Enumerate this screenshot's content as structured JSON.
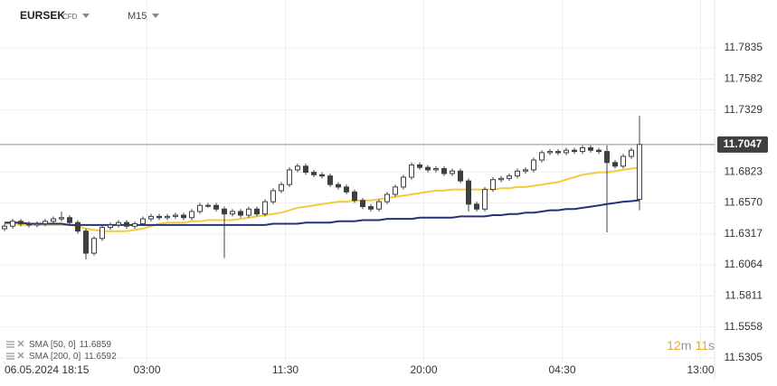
{
  "chart_data": {
    "type": "candlestick",
    "symbol": "EURSEK",
    "instrument_type": "CFD",
    "timeframe": "M15",
    "ylim": [
      11.5275,
      11.8005
    ],
    "yticks": [
      11.7835,
      11.7582,
      11.7329,
      11.6823,
      {
        "value": 11.657,
        "label": "11.6570"
      },
      11.6317,
      11.6064,
      11.5811,
      11.5558,
      11.5305
    ],
    "xlim": [
      -0.5,
      87.5
    ],
    "xticks": [
      {
        "value": 0,
        "label": "06.05.2024 18:15"
      },
      {
        "value": 17.5,
        "label": "03:00"
      },
      {
        "value": 34.5,
        "label": "11:30"
      },
      {
        "value": 51.5,
        "label": "20:00"
      },
      {
        "value": 68.5,
        "label": "04:30"
      },
      {
        "value": 85.5,
        "label": "13:00"
      }
    ],
    "grid": true,
    "up_color": "#ffffff",
    "down_color": "#3c4043",
    "wick_color": "#3c4043",
    "open": [
      11.636,
      11.638,
      11.642,
      11.64,
      11.639,
      11.64,
      11.642,
      11.644,
      11.645,
      11.641,
      11.634,
      11.616,
      11.628,
      11.637,
      11.639,
      11.641,
      11.638,
      11.64,
      11.644,
      11.646,
      11.645,
      11.646,
      11.647,
      11.645,
      11.65,
      11.655,
      11.655,
      11.652,
      11.648,
      11.65,
      11.647,
      11.652,
      11.648,
      11.658,
      11.667,
      11.672,
      11.684,
      11.687,
      11.682,
      11.68,
      11.679,
      11.672,
      11.67,
      11.666,
      11.659,
      11.654,
      11.652,
      11.658,
      11.664,
      11.67,
      11.678,
      11.688,
      11.686,
      11.684,
      11.685,
      11.681,
      11.683,
      11.675,
      11.656,
      11.652,
      11.668,
      11.676,
      11.677,
      11.679,
      11.683,
      11.684,
      11.692,
      11.698,
      11.699,
      11.698,
      11.7,
      11.699,
      11.702,
      11.7,
      11.699,
      11.69,
      11.687,
      11.695,
      11.66
    ],
    "high": [
      11.64,
      11.644,
      11.644,
      11.642,
      11.642,
      11.644,
      11.646,
      11.65,
      11.647,
      11.643,
      11.636,
      11.63,
      11.639,
      11.641,
      11.643,
      11.643,
      11.642,
      11.646,
      11.648,
      11.648,
      11.648,
      11.649,
      11.649,
      11.652,
      11.657,
      11.657,
      11.657,
      11.654,
      11.652,
      11.652,
      11.654,
      11.654,
      11.66,
      11.669,
      11.674,
      11.686,
      11.689,
      11.689,
      11.684,
      11.682,
      11.681,
      11.674,
      11.672,
      11.668,
      11.661,
      11.656,
      11.66,
      11.666,
      11.672,
      11.68,
      11.69,
      11.69,
      11.688,
      11.687,
      11.687,
      11.685,
      11.685,
      11.677,
      11.658,
      11.67,
      11.678,
      11.679,
      11.681,
      11.685,
      11.686,
      11.694,
      11.7,
      11.701,
      11.701,
      11.702,
      11.702,
      11.704,
      11.704,
      11.702,
      11.704,
      11.692,
      11.697,
      11.702,
      11.728
    ],
    "low": [
      11.634,
      11.636,
      11.638,
      11.637,
      11.637,
      11.638,
      11.64,
      11.642,
      11.639,
      11.632,
      11.611,
      11.614,
      11.626,
      11.635,
      11.637,
      11.636,
      11.636,
      11.638,
      11.642,
      11.643,
      11.643,
      11.644,
      11.643,
      11.643,
      11.648,
      11.653,
      11.65,
      11.612,
      11.646,
      11.645,
      11.645,
      11.646,
      11.646,
      11.656,
      11.665,
      11.67,
      11.682,
      11.68,
      11.678,
      11.677,
      11.67,
      11.668,
      11.664,
      11.657,
      11.652,
      11.65,
      11.65,
      11.656,
      11.662,
      11.668,
      11.676,
      11.684,
      11.682,
      11.682,
      11.679,
      11.679,
      11.673,
      11.65,
      11.65,
      11.65,
      11.666,
      11.674,
      11.675,
      11.677,
      11.681,
      11.682,
      11.69,
      11.696,
      11.696,
      11.696,
      11.697,
      11.697,
      11.698,
      11.697,
      11.633,
      11.685,
      11.685,
      11.693,
      11.651
    ],
    "close": [
      11.638,
      11.642,
      11.64,
      11.639,
      11.64,
      11.642,
      11.644,
      11.645,
      11.641,
      11.634,
      11.616,
      11.628,
      11.637,
      11.639,
      11.641,
      11.638,
      11.64,
      11.644,
      11.646,
      11.645,
      11.646,
      11.647,
      11.645,
      11.65,
      11.655,
      11.655,
      11.652,
      11.648,
      11.65,
      11.647,
      11.652,
      11.648,
      11.658,
      11.667,
      11.672,
      11.684,
      11.687,
      11.682,
      11.68,
      11.679,
      11.672,
      11.67,
      11.666,
      11.659,
      11.654,
      11.652,
      11.658,
      11.664,
      11.67,
      11.678,
      11.688,
      11.686,
      11.684,
      11.685,
      11.681,
      11.683,
      11.675,
      11.656,
      11.652,
      11.668,
      11.676,
      11.677,
      11.679,
      11.683,
      11.684,
      11.692,
      11.698,
      11.699,
      11.698,
      11.7,
      11.699,
      11.702,
      11.7,
      11.699,
      11.69,
      11.687,
      11.695,
      11.7,
      11.7047
    ],
    "overlays": [
      {
        "name": "SMA [50, 0]",
        "color": "#f2cc3c",
        "values": [
          11.64,
          11.64,
          11.639,
          11.639,
          11.639,
          11.639,
          11.639,
          11.639,
          11.639,
          11.638,
          11.636,
          11.635,
          11.634,
          11.634,
          11.634,
          11.634,
          11.635,
          11.636,
          11.638,
          11.64,
          11.641,
          11.641,
          11.641,
          11.642,
          11.642,
          11.643,
          11.643,
          11.643,
          11.643,
          11.644,
          11.645,
          11.646,
          11.647,
          11.648,
          11.649,
          11.651,
          11.653,
          11.654,
          11.655,
          11.656,
          11.657,
          11.658,
          11.658,
          11.659,
          11.659,
          11.659,
          11.66,
          11.661,
          11.662,
          11.663,
          11.664,
          11.665,
          11.666,
          11.667,
          11.667,
          11.668,
          11.668,
          11.668,
          11.668,
          11.668,
          11.668,
          11.669,
          11.669,
          11.67,
          11.67,
          11.671,
          11.672,
          11.673,
          11.674,
          11.676,
          11.678,
          11.68,
          11.681,
          11.682,
          11.682,
          11.683,
          11.684,
          11.685,
          11.6859
        ]
      },
      {
        "name": "SMA [200, 0]",
        "color": "#27307a",
        "values": [
          11.641,
          11.641,
          11.641,
          11.64,
          11.64,
          11.64,
          11.64,
          11.64,
          11.639,
          11.639,
          11.639,
          11.639,
          11.639,
          11.639,
          11.639,
          11.639,
          11.639,
          11.639,
          11.639,
          11.639,
          11.639,
          11.639,
          11.639,
          11.639,
          11.639,
          11.639,
          11.639,
          11.639,
          11.639,
          11.639,
          11.639,
          11.639,
          11.639,
          11.64,
          11.64,
          11.64,
          11.64,
          11.641,
          11.641,
          11.641,
          11.641,
          11.642,
          11.642,
          11.642,
          11.643,
          11.643,
          11.643,
          11.644,
          11.644,
          11.644,
          11.644,
          11.645,
          11.645,
          11.645,
          11.645,
          11.645,
          11.646,
          11.646,
          11.646,
          11.646,
          11.647,
          11.647,
          11.648,
          11.648,
          11.649,
          11.649,
          11.65,
          11.651,
          11.651,
          11.652,
          11.652,
          11.653,
          11.654,
          11.655,
          11.656,
          11.657,
          11.658,
          11.6585,
          11.6592
        ]
      }
    ],
    "current_price": 11.7047,
    "countdown": [
      "12",
      "m",
      "11",
      "s"
    ]
  }
}
